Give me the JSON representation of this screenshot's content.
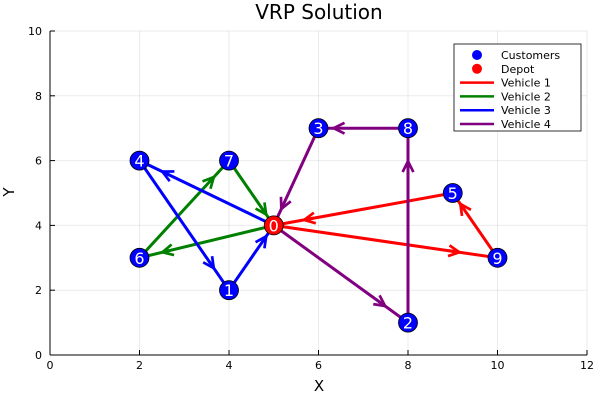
{
  "chart_data": {
    "type": "scatter",
    "title": "VRP Solution",
    "xlabel": "X",
    "ylabel": "Y",
    "xlim": [
      0,
      12
    ],
    "ylim": [
      0,
      10
    ],
    "x_ticks": [
      "0",
      "2",
      "4",
      "6",
      "8",
      "10",
      "12"
    ],
    "y_ticks": [
      "0",
      "2",
      "4",
      "6",
      "8",
      "10"
    ],
    "grid": true,
    "legend_position": "top-right",
    "nodes": [
      {
        "label": "0",
        "x": 5,
        "y": 4,
        "role": "depot"
      },
      {
        "label": "1",
        "x": 4,
        "y": 2,
        "role": "customer"
      },
      {
        "label": "2",
        "x": 8,
        "y": 1,
        "role": "customer"
      },
      {
        "label": "3",
        "x": 6,
        "y": 7,
        "role": "customer"
      },
      {
        "label": "4",
        "x": 2,
        "y": 6,
        "role": "customer"
      },
      {
        "label": "5",
        "x": 9,
        "y": 5,
        "role": "customer"
      },
      {
        "label": "6",
        "x": 2,
        "y": 3,
        "role": "customer"
      },
      {
        "label": "7",
        "x": 4,
        "y": 6,
        "role": "customer"
      },
      {
        "label": "8",
        "x": 8,
        "y": 7,
        "role": "customer"
      },
      {
        "label": "9",
        "x": 10,
        "y": 3,
        "role": "customer"
      }
    ],
    "series": [
      {
        "name": "Customers",
        "kind": "marker",
        "color": "#0000ff"
      },
      {
        "name": "Depot",
        "kind": "marker",
        "color": "#ff0000"
      },
      {
        "name": "Vehicle 1",
        "kind": "route",
        "color": "#ff0000",
        "route": [
          0,
          9,
          5,
          0
        ]
      },
      {
        "name": "Vehicle 2",
        "kind": "route",
        "color": "#008000",
        "route": [
          0,
          6,
          7,
          0
        ]
      },
      {
        "name": "Vehicle 3",
        "kind": "route",
        "color": "#0000ff",
        "route": [
          0,
          4,
          1,
          0
        ]
      },
      {
        "name": "Vehicle 4",
        "kind": "route",
        "color": "#800080",
        "route": [
          0,
          2,
          8,
          3,
          0
        ]
      }
    ]
  }
}
